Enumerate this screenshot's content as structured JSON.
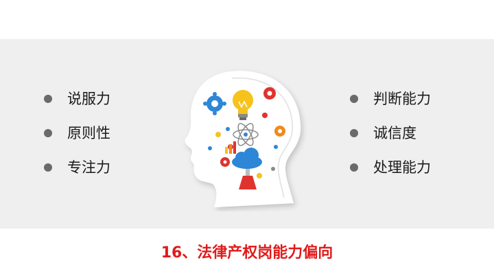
{
  "left_items": [
    "说服力",
    "原则性",
    "专注力"
  ],
  "right_items": [
    "判断能力",
    "诚信度",
    "处理能力"
  ],
  "caption": "16、法律产权岗能力偏向",
  "colors": {
    "band": "#efefef",
    "bullet": "#6a6a6a",
    "caption": "#e01b1b",
    "accent_blue": "#2e86d6",
    "accent_yellow": "#f6c21c",
    "accent_red": "#e0332e",
    "accent_orange": "#f08a1d"
  },
  "illustration": "head-with-gears-lightbulb-icon"
}
